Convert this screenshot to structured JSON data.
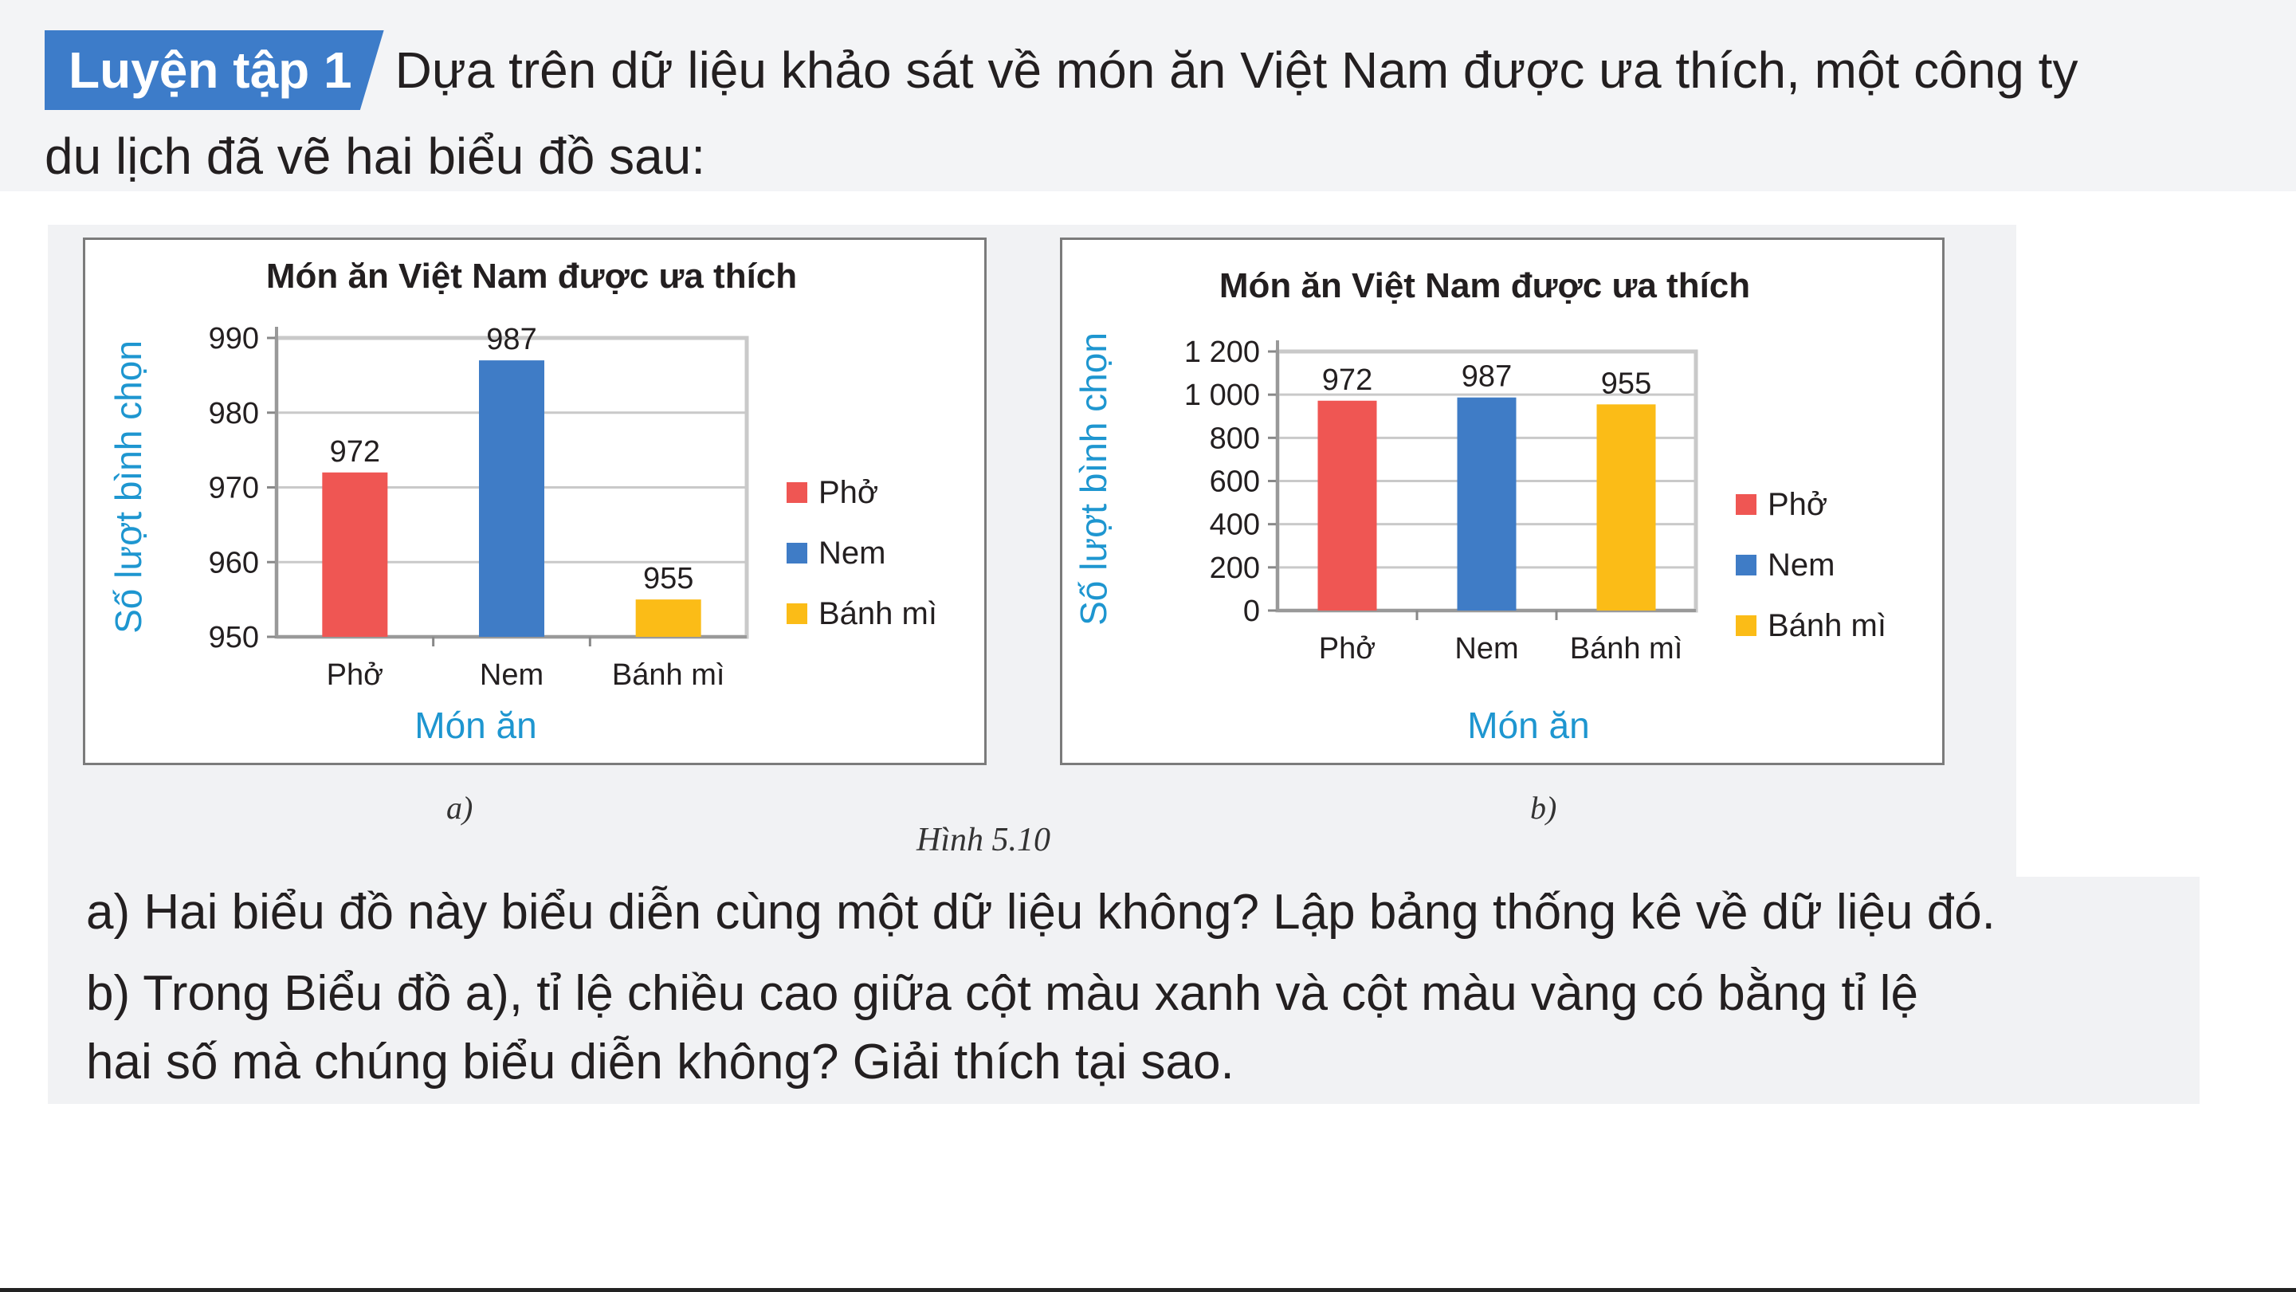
{
  "header": {
    "badge": "Luyện tập 1",
    "intro_line1": "Dựa trên dữ liệu khảo sát về món ăn Việt Nam được ưa thích, một công ty",
    "intro_line2": "du lịch đã vẽ hai biểu đồ sau:"
  },
  "chart_data": [
    {
      "type": "bar",
      "title": "Món ăn Việt Nam được ưa thích",
      "xlabel": "Món ăn",
      "ylabel": "Số lượt bình chọn",
      "categories": [
        "Phở",
        "Nem",
        "Bánh mì"
      ],
      "values": [
        972,
        987,
        955
      ],
      "data_labels": [
        "972",
        "987",
        "955"
      ],
      "colors": [
        "#ef5653",
        "#3f7cc6",
        "#fbbc17"
      ],
      "ylim": [
        950,
        990
      ],
      "yticks": [
        950,
        960,
        970,
        980,
        990
      ],
      "ytick_labels": [
        "950",
        "960",
        "970",
        "980",
        "990"
      ],
      "legend": [
        "Phở",
        "Nem",
        "Bánh mì"
      ],
      "legend_position": "right",
      "grid": true,
      "sub_label": "a)"
    },
    {
      "type": "bar",
      "title": "Món ăn Việt Nam được ưa thích",
      "xlabel": "Món ăn",
      "ylabel": "Số lượt bình chọn",
      "categories": [
        "Phở",
        "Nem",
        "Bánh mì"
      ],
      "values": [
        972,
        987,
        955
      ],
      "data_labels": [
        "972",
        "987",
        "955"
      ],
      "colors": [
        "#ef5653",
        "#3f7cc6",
        "#fbbc17"
      ],
      "ylim": [
        0,
        1200
      ],
      "yticks": [
        0,
        200,
        400,
        600,
        800,
        1000,
        1200
      ],
      "ytick_labels": [
        "0",
        "200",
        "400",
        "600",
        "800",
        "1 000",
        "1 200"
      ],
      "legend": [
        "Phở",
        "Nem",
        "Bánh mì"
      ],
      "legend_position": "right",
      "grid": true,
      "sub_label": "b)"
    }
  ],
  "figure_caption": "Hình 5.10",
  "questions": {
    "a": "a) Hai biểu đồ này biểu diễn cùng một dữ liệu không? Lập bảng thống kê về dữ liệu đó.",
    "b_line1": "b) Trong Biểu đồ a), tỉ lệ chiều cao giữa cột màu xanh và cột màu vàng có bằng tỉ lệ",
    "b_line2": "hai số mà chúng biểu diễn không? Giải thích tại sao."
  }
}
